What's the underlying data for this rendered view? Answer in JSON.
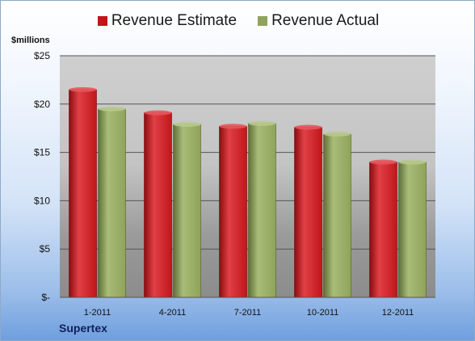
{
  "chart_data": {
    "type": "bar",
    "categories": [
      "1-2011",
      "4-2011",
      "7-2011",
      "10-2011",
      "12-2011"
    ],
    "series": [
      {
        "name": "Revenue Estimate",
        "color": "#c0161a",
        "values": [
          21.5,
          19.1,
          17.7,
          17.6,
          14.0
        ]
      },
      {
        "name": "Revenue Actual",
        "color": "#8fa35a",
        "values": [
          19.5,
          17.9,
          18.0,
          16.9,
          14.0
        ]
      }
    ],
    "ylabel": "$millions",
    "ylim": [
      0,
      25
    ],
    "yticks": [
      0,
      5,
      10,
      15,
      20,
      25
    ],
    "ytick_labels": [
      "$-",
      "$5",
      "$10",
      "$15",
      "$20",
      "$25"
    ],
    "grid": true,
    "legend_position": "top",
    "annotation": "Supertex"
  }
}
